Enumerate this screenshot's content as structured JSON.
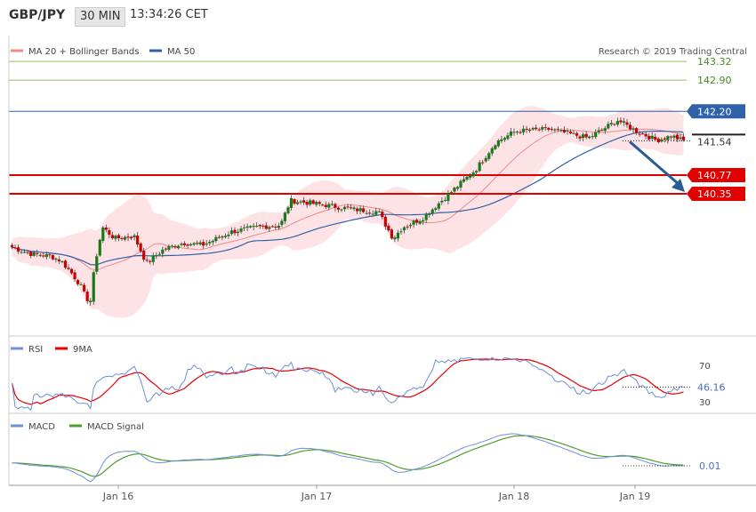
{
  "header": {
    "symbol": "GBP/JPY",
    "timeframe": "30 MIN",
    "time": "13:34:26 CET"
  },
  "colors": {
    "ma20": "#f08a8a",
    "ma50": "#2f62a8",
    "band": "#fde3e5",
    "support": "#e00000",
    "resistance_green": "#8fbf5a",
    "bull": "#1a7a1a",
    "bear": "#cc0000",
    "rsi": "#6e8fd8",
    "nine_ma": "#e60000",
    "macd": "#6e8fd8",
    "signal": "#4f9d2a",
    "arrow": "#2a5c94"
  },
  "chart_data": [
    {
      "type": "candlestick",
      "title": "",
      "legend": [
        "MA 20 + Bollinger Bands",
        "MA 50"
      ],
      "credit": "Research © 2019 Trading Central",
      "x_ticks": [
        "Jan 16",
        "Jan 17",
        "Jan 18",
        "Jan 19"
      ],
      "price_lines": [
        {
          "label": "143.32",
          "value": 143.32,
          "kind": "resistance_green"
        },
        {
          "label": "142.90",
          "value": 142.9,
          "kind": "resistance_green"
        },
        {
          "label": "142.20",
          "value": 142.2,
          "kind": "ma50_level"
        },
        {
          "label": "141.54",
          "value": 141.54,
          "kind": "current"
        },
        {
          "label": "140.77",
          "value": 140.77,
          "kind": "support"
        },
        {
          "label": "140.35",
          "value": 140.35,
          "kind": "support"
        }
      ],
      "projection": {
        "from": 141.54,
        "to": 140.35
      },
      "ylim": [
        137.2,
        143.9
      ]
    },
    {
      "type": "line",
      "legend": [
        "RSI",
        "9MA"
      ],
      "levels": [
        "70",
        "30"
      ],
      "current_label": "46.16",
      "current_value": 46.16,
      "ylim": [
        20,
        85
      ]
    },
    {
      "type": "line",
      "legend": [
        "MACD",
        "MACD Signal"
      ],
      "current_label": "0.01",
      "current_value": 0.01
    }
  ]
}
